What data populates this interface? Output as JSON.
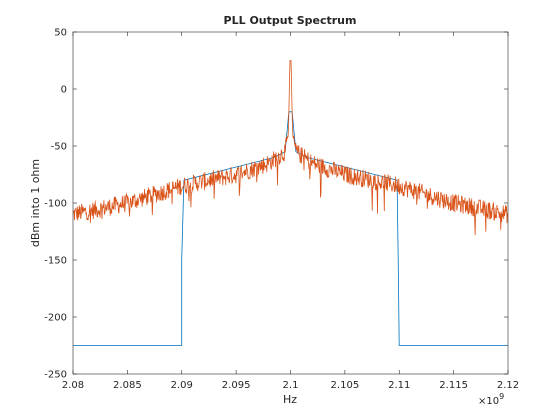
{
  "chart_data": {
    "type": "line",
    "title": "PLL Output Spectrum",
    "xlabel": "Hz",
    "ylabel": "dBm into 1 ohm",
    "x_exponent_label": "×10",
    "x_exponent": "9",
    "xlim": [
      2.08,
      2.12
    ],
    "ylim": [
      -250,
      50
    ],
    "x_ticks": [
      2.08,
      2.085,
      2.09,
      2.095,
      2.1,
      2.105,
      2.11,
      2.115,
      2.12
    ],
    "x_tick_labels": [
      "2.08",
      "2.085",
      "2.09",
      "2.095",
      "2.1",
      "2.105",
      "2.11",
      "2.115",
      "2.12"
    ],
    "y_ticks": [
      -250,
      -200,
      -150,
      -100,
      -50,
      0,
      50
    ],
    "y_tick_labels": [
      "-250",
      "-200",
      "-150",
      "-100",
      "-50",
      "0",
      "50"
    ],
    "grid": false,
    "series": [
      {
        "color": "#0072BD",
        "points": [
          [
            2.08,
            -225
          ],
          [
            2.09,
            -225
          ],
          [
            2.09,
            -150
          ],
          [
            2.0902,
            -80
          ],
          [
            2.0985,
            -60
          ],
          [
            2.0995,
            -55
          ],
          [
            2.09985,
            -20
          ],
          [
            2.1,
            -20
          ],
          [
            2.10015,
            -20
          ],
          [
            2.1005,
            -55
          ],
          [
            2.1015,
            -60
          ],
          [
            2.1098,
            -80
          ],
          [
            2.1099,
            -150
          ],
          [
            2.11,
            -225
          ],
          [
            2.12,
            -225
          ]
        ]
      },
      {
        "color": "#D95319",
        "points": [
          [
            2.08,
            -110
          ],
          [
            2.085,
            -100
          ],
          [
            2.09,
            -85
          ],
          [
            2.095,
            -75
          ],
          [
            2.098,
            -65
          ],
          [
            2.0995,
            -55
          ],
          [
            2.0998,
            -40
          ],
          [
            2.09995,
            25
          ],
          [
            2.10005,
            25
          ],
          [
            2.1002,
            -40
          ],
          [
            2.1005,
            -55
          ],
          [
            2.102,
            -65
          ],
          [
            2.105,
            -75
          ],
          [
            2.11,
            -85
          ],
          [
            2.115,
            -100
          ],
          [
            2.12,
            -110
          ]
        ],
        "noise_amplitude_db": 8
      }
    ]
  }
}
